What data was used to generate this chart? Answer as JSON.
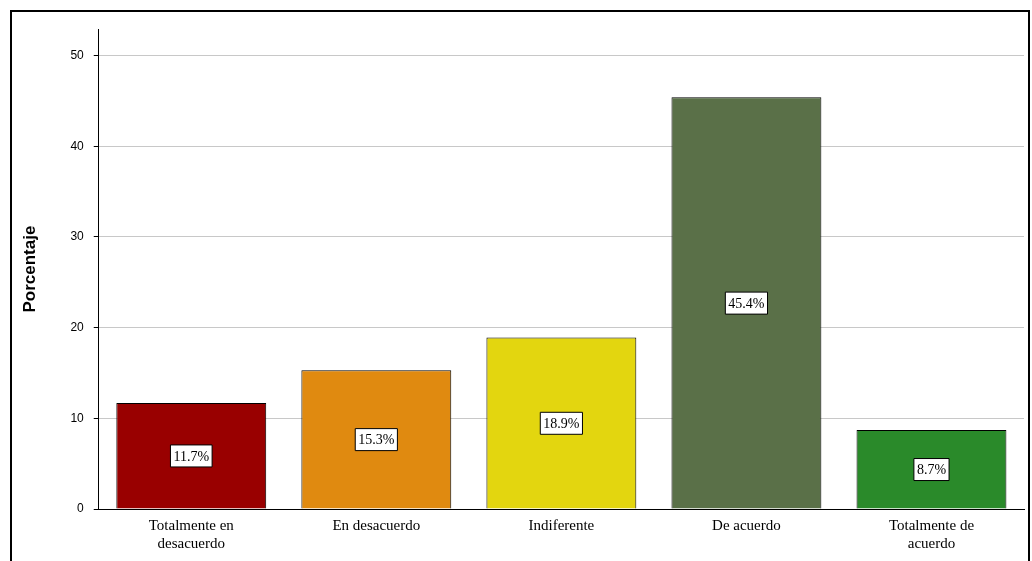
{
  "chart_data": {
    "type": "bar",
    "ylabel": "Porcentaje",
    "categories": [
      "Totalmente en desacuerdo",
      "En desacuerdo",
      "Indiferente",
      "De acuerdo",
      "Totalmente de acuerdo"
    ],
    "values": [
      11.7,
      15.3,
      18.9,
      45.4,
      8.7
    ],
    "colors": [
      "#990000",
      "#e08a10",
      "#e3d60f",
      "#5a7048",
      "#2a8a2a"
    ],
    "value_labels": [
      "11.7%",
      "15.3%",
      "18.9%",
      "45.4%",
      "8.7%"
    ],
    "ylim": [
      0,
      52.9
    ],
    "yticks": [
      0,
      10,
      20,
      30,
      40,
      50
    ],
    "grid": "y"
  }
}
